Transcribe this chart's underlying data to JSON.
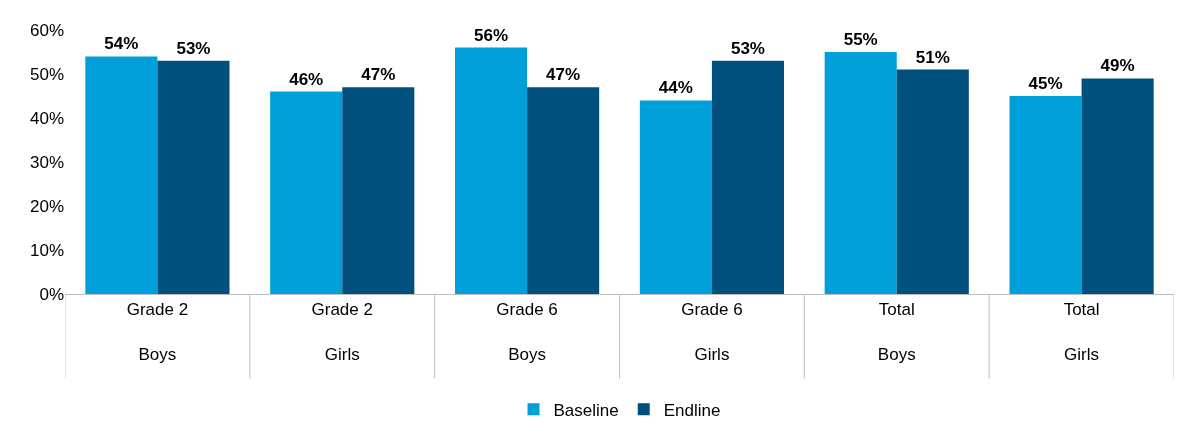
{
  "chart_data": {
    "type": "bar",
    "categories": [
      "Grade 2\nBoys",
      "Grade 2\nGirls",
      "Grade 6\nBoys",
      "Grade 6\nGirls",
      "Total\nBoys",
      "Total\nGirls"
    ],
    "series": [
      {
        "name": "Baseline",
        "color": "#009fda",
        "values": [
          54,
          46,
          56,
          44,
          55,
          45
        ],
        "value_labels": [
          "54%",
          "46%",
          "56%",
          "44%",
          "55%",
          "45%"
        ]
      },
      {
        "name": "Endline",
        "color": "#00507d",
        "values": [
          53,
          47,
          47,
          53,
          51,
          49
        ],
        "value_labels": [
          "53%",
          "47%",
          "47%",
          "53%",
          "51%",
          "49%"
        ]
      }
    ],
    "ylim": [
      0,
      60
    ],
    "yticks": [
      {
        "value": 0,
        "label": "0%"
      },
      {
        "value": 10,
        "label": "10%"
      },
      {
        "value": 20,
        "label": "20%"
      },
      {
        "value": 30,
        "label": "30%"
      },
      {
        "value": 40,
        "label": "40%"
      },
      {
        "value": 50,
        "label": "50%"
      },
      {
        "value": 60,
        "label": "60%"
      }
    ],
    "legend": "bottom"
  }
}
